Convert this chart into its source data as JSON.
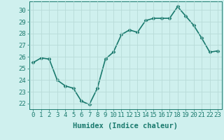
{
  "x": [
    0,
    1,
    2,
    3,
    4,
    5,
    6,
    7,
    8,
    9,
    10,
    11,
    12,
    13,
    14,
    15,
    16,
    17,
    18,
    19,
    20,
    21,
    22,
    23
  ],
  "y": [
    25.5,
    25.9,
    25.8,
    24.0,
    23.5,
    23.3,
    22.2,
    21.9,
    23.3,
    25.8,
    26.4,
    27.9,
    28.3,
    28.1,
    29.1,
    29.3,
    29.3,
    29.3,
    30.3,
    29.5,
    28.7,
    27.6,
    26.4,
    26.5
  ],
  "line_color": "#1a7a6e",
  "marker": "D",
  "marker_size": 2.5,
  "bg_color": "#cff0ee",
  "grid_color": "#b8dbd8",
  "xlabel": "Humidex (Indice chaleur)",
  "ylim": [
    21.5,
    30.75
  ],
  "yticks": [
    22,
    23,
    24,
    25,
    26,
    27,
    28,
    29,
    30
  ],
  "xticks": [
    0,
    1,
    2,
    3,
    4,
    5,
    6,
    7,
    8,
    9,
    10,
    11,
    12,
    13,
    14,
    15,
    16,
    17,
    18,
    19,
    20,
    21,
    22,
    23
  ],
  "tick_color": "#1a7a6e",
  "tick_fontsize": 6.5,
  "xlabel_fontsize": 7.5,
  "line_width": 1.2
}
